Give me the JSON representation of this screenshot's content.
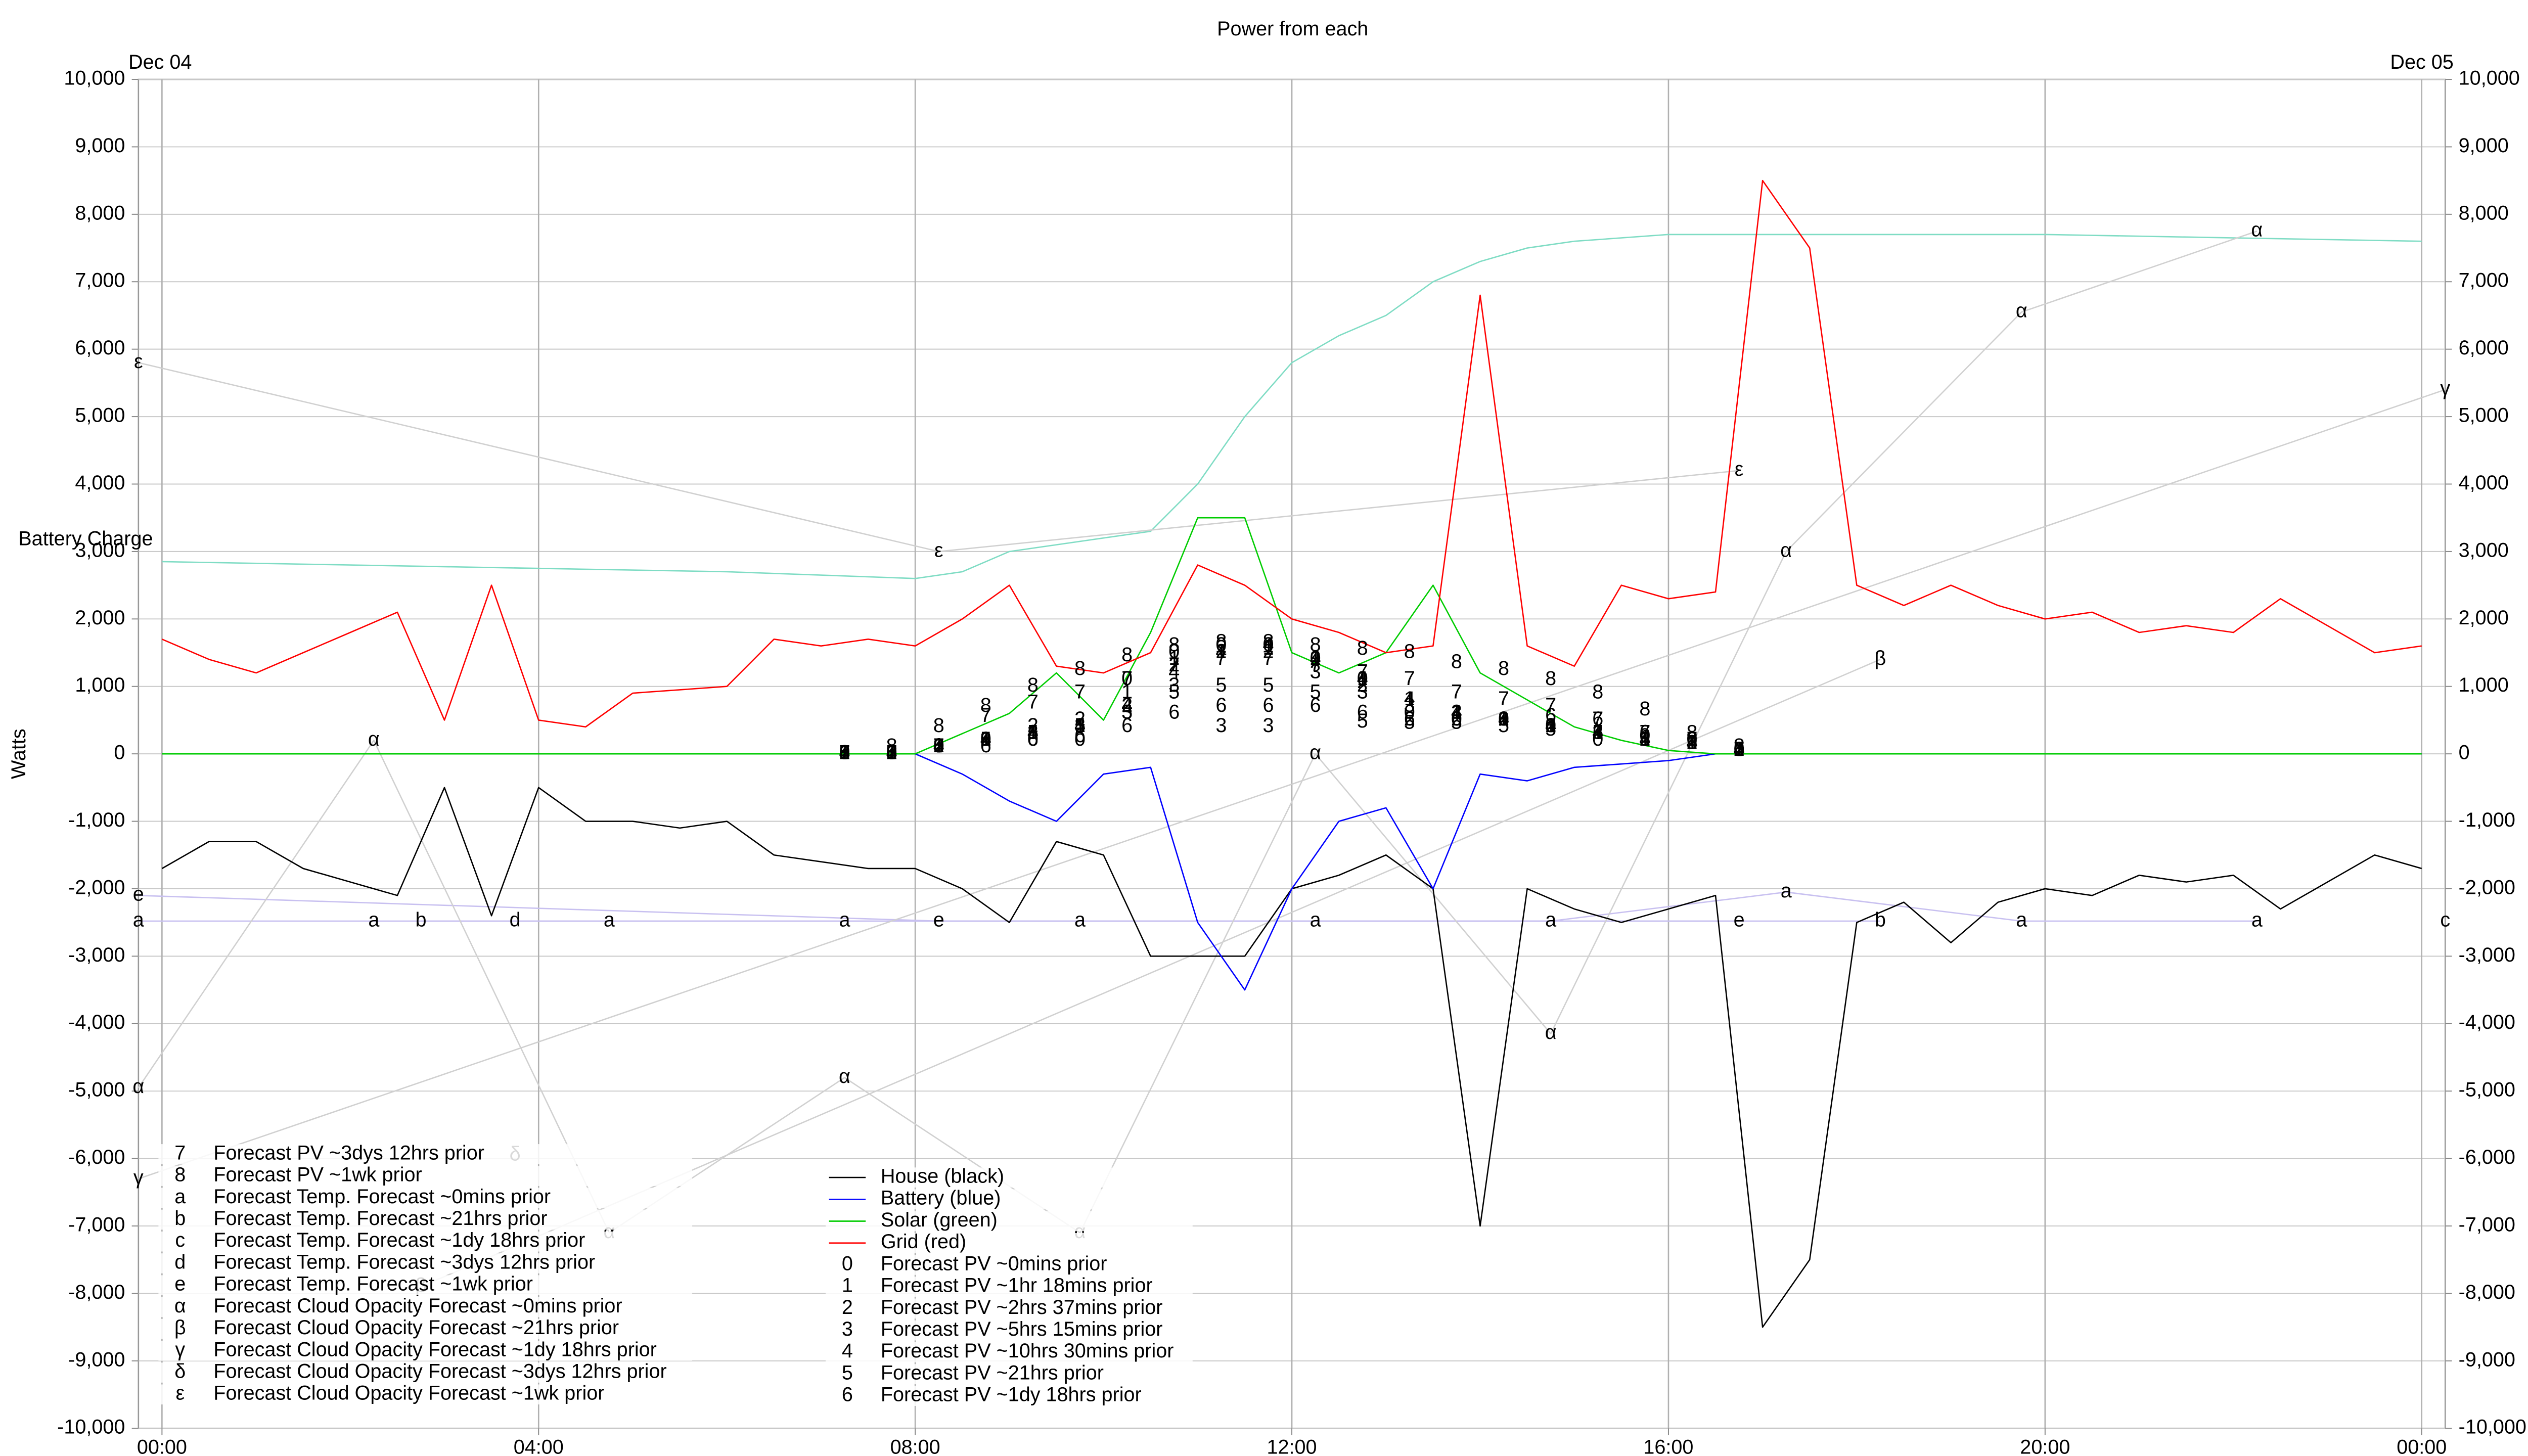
{
  "chart_data": {
    "type": "line",
    "title": "Power from each",
    "date_start": "Dec 04",
    "date_end": "Dec 05",
    "ylabel": "Watts",
    "grid": true,
    "xlim": [
      -0.25,
      24.25
    ],
    "xticks": [
      {
        "value": 0,
        "label": "00:00"
      },
      {
        "value": 4,
        "label": "04:00"
      },
      {
        "value": 8,
        "label": "08:00"
      },
      {
        "value": 12,
        "label": "12:00"
      },
      {
        "value": 16,
        "label": "16:00"
      },
      {
        "value": 20,
        "label": "20:00"
      },
      {
        "value": 24,
        "label": "00:00"
      }
    ],
    "ylim": [
      -10000,
      10000
    ],
    "yticks": [
      {
        "value": -10000,
        "label": "-10,000"
      },
      {
        "value": -9000,
        "label": "-9,000"
      },
      {
        "value": -8000,
        "label": "-8,000"
      },
      {
        "value": -7000,
        "label": "-7,000"
      },
      {
        "value": -6000,
        "label": "-6,000"
      },
      {
        "value": -5000,
        "label": "-5,000"
      },
      {
        "value": -4000,
        "label": "-4,000"
      },
      {
        "value": -3000,
        "label": "-3,000"
      },
      {
        "value": -2000,
        "label": "-2,000"
      },
      {
        "value": -1000,
        "label": "-1,000"
      },
      0,
      {
        "value": 1000,
        "label": "1,000"
      },
      {
        "value": 2000,
        "label": "2,000"
      },
      {
        "value": 3000,
        "label": "3,000"
      },
      {
        "value": 4000,
        "label": "4,000"
      },
      {
        "value": 5000,
        "label": "5,000"
      },
      {
        "value": 6000,
        "label": "6,000"
      },
      {
        "value": 7000,
        "label": "7,000"
      },
      {
        "value": 8000,
        "label": "8,000"
      },
      {
        "value": 9000,
        "label": "9,000"
      },
      {
        "value": 10000,
        "label": "10,000"
      }
    ],
    "x": [
      0,
      0.5,
      1,
      1.5,
      2,
      2.5,
      3,
      3.5,
      4,
      4.5,
      5,
      5.5,
      6,
      6.5,
      7,
      7.5,
      8,
      8.5,
      9,
      9.5,
      10,
      10.5,
      11,
      11.5,
      12,
      12.5,
      13,
      13.5,
      14,
      14.5,
      15,
      15.5,
      16,
      16.5,
      17,
      17.5,
      18,
      18.5,
      19,
      19.5,
      20,
      20.5,
      21,
      21.5,
      22,
      22.5,
      23,
      23.5,
      24
    ],
    "battery_charge": {
      "name": "Battery Charge",
      "color": "#7fdcc4",
      "x": [
        0,
        2,
        4,
        6,
        8,
        8.5,
        9,
        10,
        10.5,
        11,
        11.5,
        12,
        12.5,
        13,
        13.5,
        14,
        14.5,
        15,
        16,
        17,
        18,
        20,
        22,
        24
      ],
      "values": [
        2850,
        2800,
        2750,
        2700,
        2600,
        2700,
        3000,
        3200,
        3300,
        4000,
        5000,
        5800,
        6200,
        6500,
        7000,
        7300,
        7500,
        7600,
        7700,
        7700,
        7700,
        7700,
        7650,
        7600
      ]
    },
    "series": [
      {
        "name": "House (black)",
        "color": "#000000",
        "style": "line",
        "values": [
          -1700,
          -1300,
          -1300,
          -1700,
          -1900,
          -2100,
          -500,
          -2400,
          -500,
          -1000,
          -1000,
          -1100,
          -1000,
          -1500,
          -1600,
          -1700,
          -1700,
          -2000,
          -2500,
          -1300,
          -1500,
          -3000,
          -3000,
          -3000,
          -2000,
          -1800,
          -1500,
          -2000,
          -7000,
          -2000,
          -2300,
          -2500,
          -2300,
          -2100,
          -8500,
          -7500,
          -2500,
          -2200,
          -2800,
          -2200,
          -2000,
          -2100,
          -1800,
          -1900,
          -1800,
          -2300,
          -1900,
          -1500,
          -1700
        ]
      },
      {
        "name": "Battery (blue)",
        "color": "#0000ff",
        "style": "line",
        "values": [
          0,
          0,
          0,
          0,
          0,
          0,
          0,
          0,
          0,
          0,
          0,
          0,
          0,
          0,
          0,
          0,
          0,
          -300,
          -700,
          -1000,
          -300,
          -200,
          -2500,
          -3500,
          -2000,
          -1000,
          -800,
          -2000,
          -300,
          -400,
          -200,
          -150,
          -100,
          0,
          0,
          0,
          0,
          0,
          0,
          0,
          0,
          0,
          0,
          0,
          0,
          0,
          0,
          0,
          0
        ]
      },
      {
        "name": "Solar (green)",
        "color": "#00cc00",
        "style": "line",
        "values": [
          0,
          0,
          0,
          0,
          0,
          0,
          0,
          0,
          0,
          0,
          0,
          0,
          0,
          0,
          0,
          0,
          0,
          300,
          600,
          1200,
          500,
          1800,
          3500,
          3500,
          1500,
          1200,
          1500,
          2500,
          1200,
          800,
          400,
          200,
          50,
          0,
          0,
          0,
          0,
          0,
          0,
          0,
          0,
          0,
          0,
          0,
          0,
          0,
          0,
          0,
          0
        ]
      },
      {
        "name": "Grid (red)",
        "color": "#ff0000",
        "style": "line",
        "values": [
          1700,
          1400,
          1200,
          1500,
          1800,
          2100,
          500,
          2500,
          500,
          400,
          900,
          950,
          1000,
          1700,
          1600,
          1700,
          1600,
          2000,
          2500,
          1300,
          1200,
          1500,
          2800,
          2500,
          2000,
          1800,
          1500,
          1600,
          6800,
          1600,
          1300,
          2500,
          2300,
          2400,
          8500,
          7500,
          2500,
          2200,
          2500,
          2200,
          2000,
          2100,
          1800,
          1900,
          1800,
          2300,
          1900,
          1500,
          1600
        ]
      },
      {
        "name": "Forecast PV ~0mins prior",
        "marker": "0",
        "color": "#000000",
        "style": "marker",
        "x": [
          7.25,
          7.75,
          8.25,
          8.75,
          9.25,
          9.75,
          10.25,
          10.75,
          11.25,
          11.75,
          12.25,
          12.75,
          13.25,
          13.75,
          14.25,
          14.75,
          15.25,
          15.75,
          16.25,
          16.75
        ],
        "values": [
          0,
          0,
          100,
          200,
          200,
          200,
          1100,
          1500,
          1600,
          1600,
          1400,
          1100,
          600,
          500,
          500,
          400,
          200,
          250,
          200,
          50
        ]
      },
      {
        "name": "Forecast PV ~1hr 18mins prior",
        "marker": "1",
        "color": "#000000",
        "style": "marker",
        "x": [
          7.25,
          7.75,
          8.25,
          8.75,
          9.25,
          9.75,
          10.25,
          10.75,
          11.25,
          11.75,
          12.25,
          12.75,
          13.25,
          13.75,
          14.25,
          14.75,
          15.25,
          15.75,
          16.25,
          16.75
        ],
        "values": [
          0,
          0,
          100,
          200,
          300,
          400,
          900,
          1400,
          1500,
          1550,
          1400,
          1100,
          800,
          600,
          500,
          400,
          300,
          200,
          150,
          50
        ]
      },
      {
        "name": "Forecast PV ~2hrs 37mins prior",
        "marker": "2",
        "color": "#000000",
        "style": "marker",
        "x": [
          7.25,
          7.75,
          8.25,
          8.75,
          9.25,
          9.75,
          10.25,
          10.75,
          11.25,
          11.75,
          12.25,
          12.75,
          13.25,
          13.75,
          14.25,
          14.75,
          15.25,
          15.75,
          16.25,
          16.75
        ],
        "values": [
          0,
          0,
          100,
          200,
          400,
          500,
          700,
          1300,
          1500,
          1500,
          1400,
          1000,
          500,
          500,
          500,
          400,
          300,
          200,
          150,
          50
        ]
      },
      {
        "name": "Forecast PV ~5hrs 15mins prior",
        "marker": "3",
        "color": "#000000",
        "style": "marker",
        "x": [
          7.25,
          7.75,
          8.25,
          8.75,
          9.25,
          9.75,
          10.25,
          10.75,
          11.25,
          11.75,
          12.25,
          12.75,
          13.25,
          13.75,
          14.25,
          14.75,
          15.25,
          15.75,
          16.25,
          16.75
        ],
        "values": [
          0,
          0,
          100,
          200,
          300,
          400,
          600,
          1000,
          400,
          400,
          1200,
          900,
          700,
          600,
          500,
          400,
          300,
          200,
          150,
          50
        ]
      },
      {
        "name": "Forecast PV ~10hrs 30mins prior",
        "marker": "4",
        "color": "#000000",
        "style": "marker",
        "x": [
          7.25,
          7.75,
          8.25,
          8.75,
          9.25,
          9.75,
          10.25,
          10.75,
          11.25,
          11.75,
          12.25,
          12.75,
          13.25,
          13.75,
          14.25,
          14.75,
          15.25,
          15.75,
          16.25,
          16.75
        ],
        "values": [
          0,
          0,
          100,
          200,
          300,
          400,
          700,
          1200,
          1500,
          1600,
          1400,
          1100,
          800,
          600,
          500,
          400,
          300,
          200,
          150,
          50
        ]
      },
      {
        "name": "Forecast PV ~21hrs prior",
        "marker": "5",
        "color": "#000000",
        "style": "marker",
        "x": [
          7.25,
          7.75,
          8.25,
          8.75,
          9.25,
          9.75,
          10.25,
          10.75,
          11.25,
          11.75,
          12.25,
          12.75,
          13.25,
          13.75,
          14.25,
          14.75,
          15.25,
          15.75,
          16.25,
          16.75
        ],
        "values": [
          0,
          0,
          100,
          200,
          300,
          400,
          600,
          900,
          1000,
          1000,
          900,
          470,
          450,
          450,
          400,
          350,
          300,
          200,
          150,
          50
        ]
      },
      {
        "name": "Forecast PV ~1dy 18hrs prior",
        "marker": "6",
        "color": "#000000",
        "style": "marker",
        "x": [
          7.25,
          7.75,
          8.25,
          8.75,
          9.25,
          9.75,
          10.25,
          10.75,
          11.25,
          11.75,
          12.25,
          12.75,
          13.25,
          13.75,
          14.25,
          14.75,
          15.25,
          15.75,
          16.25,
          16.75
        ],
        "values": [
          0,
          0,
          100,
          100,
          200,
          250,
          400,
          600,
          700,
          700,
          700,
          600,
          500,
          500,
          500,
          550,
          500,
          300,
          200,
          50
        ]
      },
      {
        "name": "Forecast PV ~3dys 12hrs prior",
        "marker": "7",
        "color": "#000000",
        "style": "marker",
        "x": [
          7.25,
          7.75,
          8.25,
          8.75,
          9.25,
          9.75,
          10.25,
          10.75,
          11.25,
          11.75,
          12.25,
          12.75,
          13.25,
          13.75,
          14.25,
          14.75,
          15.25,
          15.75,
          16.25,
          16.75
        ],
        "values": [
          0,
          0,
          100,
          550,
          750,
          900,
          1100,
          1300,
          1400,
          1400,
          1300,
          1200,
          1100,
          900,
          800,
          700,
          500,
          300,
          200,
          50
        ]
      },
      {
        "name": "Forecast PV ~1wk prior",
        "marker": "8",
        "color": "#000000",
        "style": "marker",
        "x": [
          7.25,
          7.75,
          8.25,
          8.75,
          9.25,
          9.75,
          10.25,
          10.75,
          11.25,
          11.75,
          12.25,
          12.75,
          13.25,
          13.75,
          14.25,
          14.75,
          15.25,
          15.75,
          16.25,
          16.75
        ],
        "values": [
          0,
          100,
          400,
          700,
          1000,
          1250,
          1450,
          1600,
          1650,
          1650,
          1600,
          1550,
          1500,
          1350,
          1250,
          1100,
          900,
          650,
          300,
          100
        ]
      },
      {
        "name": "Forecast Temp. Forecast ~0mins prior",
        "marker": "a",
        "color": "#c8c0f0",
        "style": "line+marker",
        "x": [
          -0.25,
          2.25,
          4.75,
          7.25,
          9.75,
          12.25,
          14.75,
          17.25,
          19.75,
          22.25
        ],
        "values": [
          -2480,
          -2480,
          -2480,
          -2480,
          -2480,
          -2480,
          -2480,
          -2050,
          -2480,
          -2480
        ]
      },
      {
        "name": "Forecast Temp. Forecast ~21hrs prior",
        "marker": "b",
        "color": "#c8c0f0",
        "style": "line+marker",
        "x": [
          2.75,
          18.25
        ],
        "values": [
          -2480,
          -2480
        ]
      },
      {
        "name": "Forecast Temp. Forecast ~1dy 18hrs prior",
        "marker": "c",
        "color": "#c8c0f0",
        "style": "line+marker",
        "x": [
          24.25
        ],
        "values": [
          -2480
        ]
      },
      {
        "name": "Forecast Temp. Forecast ~3dys 12hrs prior",
        "marker": "d",
        "color": "#c8c0f0",
        "style": "line+marker",
        "x": [
          3.75
        ],
        "values": [
          -2480
        ]
      },
      {
        "name": "Forecast Temp. Forecast ~1wk prior",
        "marker": "e",
        "color": "#c8c0f0",
        "style": "line+marker",
        "x": [
          -0.25,
          8.25,
          16.75
        ],
        "values": [
          -2100,
          -2480,
          -2480
        ]
      },
      {
        "name": "Forecast Cloud Opacity Forecast ~0mins prior",
        "marker": "α",
        "color": "#d0d0d0",
        "style": "line+marker",
        "x": [
          -0.25,
          2.25,
          4.75,
          7.25,
          9.75,
          12.25,
          14.75,
          17.25,
          19.75,
          22.25
        ],
        "values": [
          -4950,
          200,
          -7100,
          -4800,
          -7100,
          0,
          -4150,
          3000,
          6550,
          7750
        ]
      },
      {
        "name": "Forecast Cloud Opacity Forecast ~21hrs prior",
        "marker": "β",
        "color": "#d0d0d0",
        "style": "line+marker",
        "x": [
          2.75,
          18.25
        ],
        "values": [
          -7900,
          1400
        ]
      },
      {
        "name": "Forecast Cloud Opacity Forecast ~1dy 18hrs prior",
        "marker": "γ",
        "color": "#d0d0d0",
        "style": "line+marker",
        "x": [
          -0.25,
          24.25
        ],
        "values": [
          -6300,
          5400
        ]
      },
      {
        "name": "Forecast Cloud Opacity Forecast ~3dys 12hrs prior",
        "marker": "δ",
        "color": "#d0d0d0",
        "style": "line+marker",
        "x": [
          3.75
        ],
        "values": [
          -5950
        ]
      },
      {
        "name": "Forecast Cloud Opacity Forecast ~1wk prior",
        "marker": "ε",
        "color": "#d0d0d0",
        "style": "line+marker",
        "x": [
          -0.25,
          8.25,
          16.75
        ],
        "values": [
          5800,
          3000,
          4200
        ]
      }
    ]
  }
}
